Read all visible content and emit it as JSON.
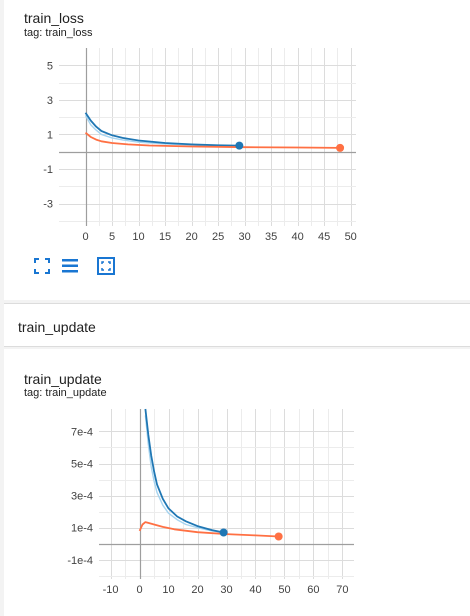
{
  "charts": [
    {
      "title": "train_loss",
      "tag": "tag: train_loss",
      "colors": {
        "light": "#a6d4f0",
        "blue": "#1f77b4",
        "orange": "#ff7043"
      },
      "chart_data": {
        "type": "line",
        "xlim": [
          -5,
          51
        ],
        "ylim": [
          -4.3,
          6.0
        ],
        "x_ticks": [
          0,
          5,
          10,
          15,
          20,
          25,
          30,
          35,
          40,
          45,
          50
        ],
        "y_ticks": [
          5,
          3,
          1,
          -1,
          -3
        ],
        "x_tick_labels": [
          "0",
          "5",
          "10",
          "15",
          "20",
          "25",
          "30",
          "35",
          "40",
          "45",
          "50"
        ],
        "y_tick_labels": [
          "5",
          "3",
          "1",
          "-1",
          "-3"
        ],
        "series": [
          {
            "color": "#a6d4f0",
            "x": [
              0,
              1,
              2,
              3,
              5,
              7,
              10,
              15,
              20,
              25,
              29
            ],
            "y": [
              2.1,
              1.55,
              1.25,
              1.0,
              0.8,
              0.68,
              0.55,
              0.45,
              0.38,
              0.34,
              0.32
            ]
          },
          {
            "color": "#1f77b4",
            "x": [
              0,
              1,
              2,
              3,
              5,
              7,
              10,
              15,
              20,
              25,
              29
            ],
            "y": [
              2.25,
              1.8,
              1.45,
              1.2,
              0.95,
              0.8,
              0.65,
              0.5,
              0.42,
              0.37,
              0.35
            ]
          },
          {
            "color": "#ff7043",
            "x": [
              0,
              1,
              2,
              3,
              5,
              8,
              12,
              20,
              30,
              40,
              48
            ],
            "y": [
              1.1,
              0.85,
              0.7,
              0.6,
              0.5,
              0.42,
              0.36,
              0.3,
              0.26,
              0.24,
              0.22
            ]
          }
        ],
        "end_points": [
          {
            "color": "#1f77b4",
            "x": 29,
            "y": 0.35
          },
          {
            "color": "#ff7043",
            "x": 48,
            "y": 0.22
          }
        ],
        "grid": true
      },
      "toolbar": [
        "expand-icon",
        "list-icon",
        "fit-domain-icon"
      ]
    },
    {
      "title": "train_update",
      "tag": "tag: train_update",
      "colors": {
        "light": "#a6d4f0",
        "blue": "#1f77b4",
        "orange": "#ff7043"
      },
      "chart_data": {
        "type": "line",
        "xlim": [
          -14,
          74
        ],
        "ylim": [
          -0.00022,
          0.00084
        ],
        "x_ticks": [
          -10,
          0,
          10,
          20,
          30,
          40,
          50,
          60,
          70
        ],
        "y_ticks": [
          0.0007,
          0.0005,
          0.0003,
          0.0001,
          -0.0001
        ],
        "x_tick_labels": [
          "-10",
          "0",
          "10",
          "20",
          "30",
          "40",
          "50",
          "60",
          "70"
        ],
        "y_tick_labels": [
          "7e-4",
          "5e-4",
          "3e-4",
          "1e-4",
          "-1e-4"
        ],
        "series": [
          {
            "color": "#a6d4f0",
            "x": [
              2,
              3,
              4,
              5,
              6,
              8,
              10,
              13,
              16,
              20,
              25,
              29
            ],
            "y": [
              0.0008,
              0.00062,
              0.00048,
              0.00039,
              0.00032,
              0.00024,
              0.00019,
              0.00015,
              0.00012,
              0.0001,
              8e-05,
              7e-05
            ]
          },
          {
            "color": "#1f77b4",
            "x": [
              2,
              3,
              4,
              5,
              6,
              8,
              10,
              13,
              16,
              20,
              25,
              29
            ],
            "y": [
              0.00084,
              0.00068,
              0.00055,
              0.00045,
              0.00037,
              0.00028,
              0.00022,
              0.00017,
              0.00014,
              0.00011,
              8.5e-05,
              7e-05
            ]
          },
          {
            "color": "#ff7043",
            "x": [
              0,
              1,
              2,
              3,
              5,
              8,
              12,
              20,
              30,
              40,
              48
            ],
            "y": [
              8e-05,
              0.00012,
              0.000135,
              0.00013,
              0.00012,
              0.000105,
              9e-05,
              7.2e-05,
              6e-05,
              5.2e-05,
              4.5e-05
            ]
          }
        ],
        "end_points": [
          {
            "color": "#1f77b4",
            "x": 29,
            "y": 7e-05
          },
          {
            "color": "#ff7043",
            "x": 48,
            "y": 4.5e-05
          }
        ],
        "grid": true
      }
    }
  ],
  "section": {
    "title": "train_update"
  }
}
